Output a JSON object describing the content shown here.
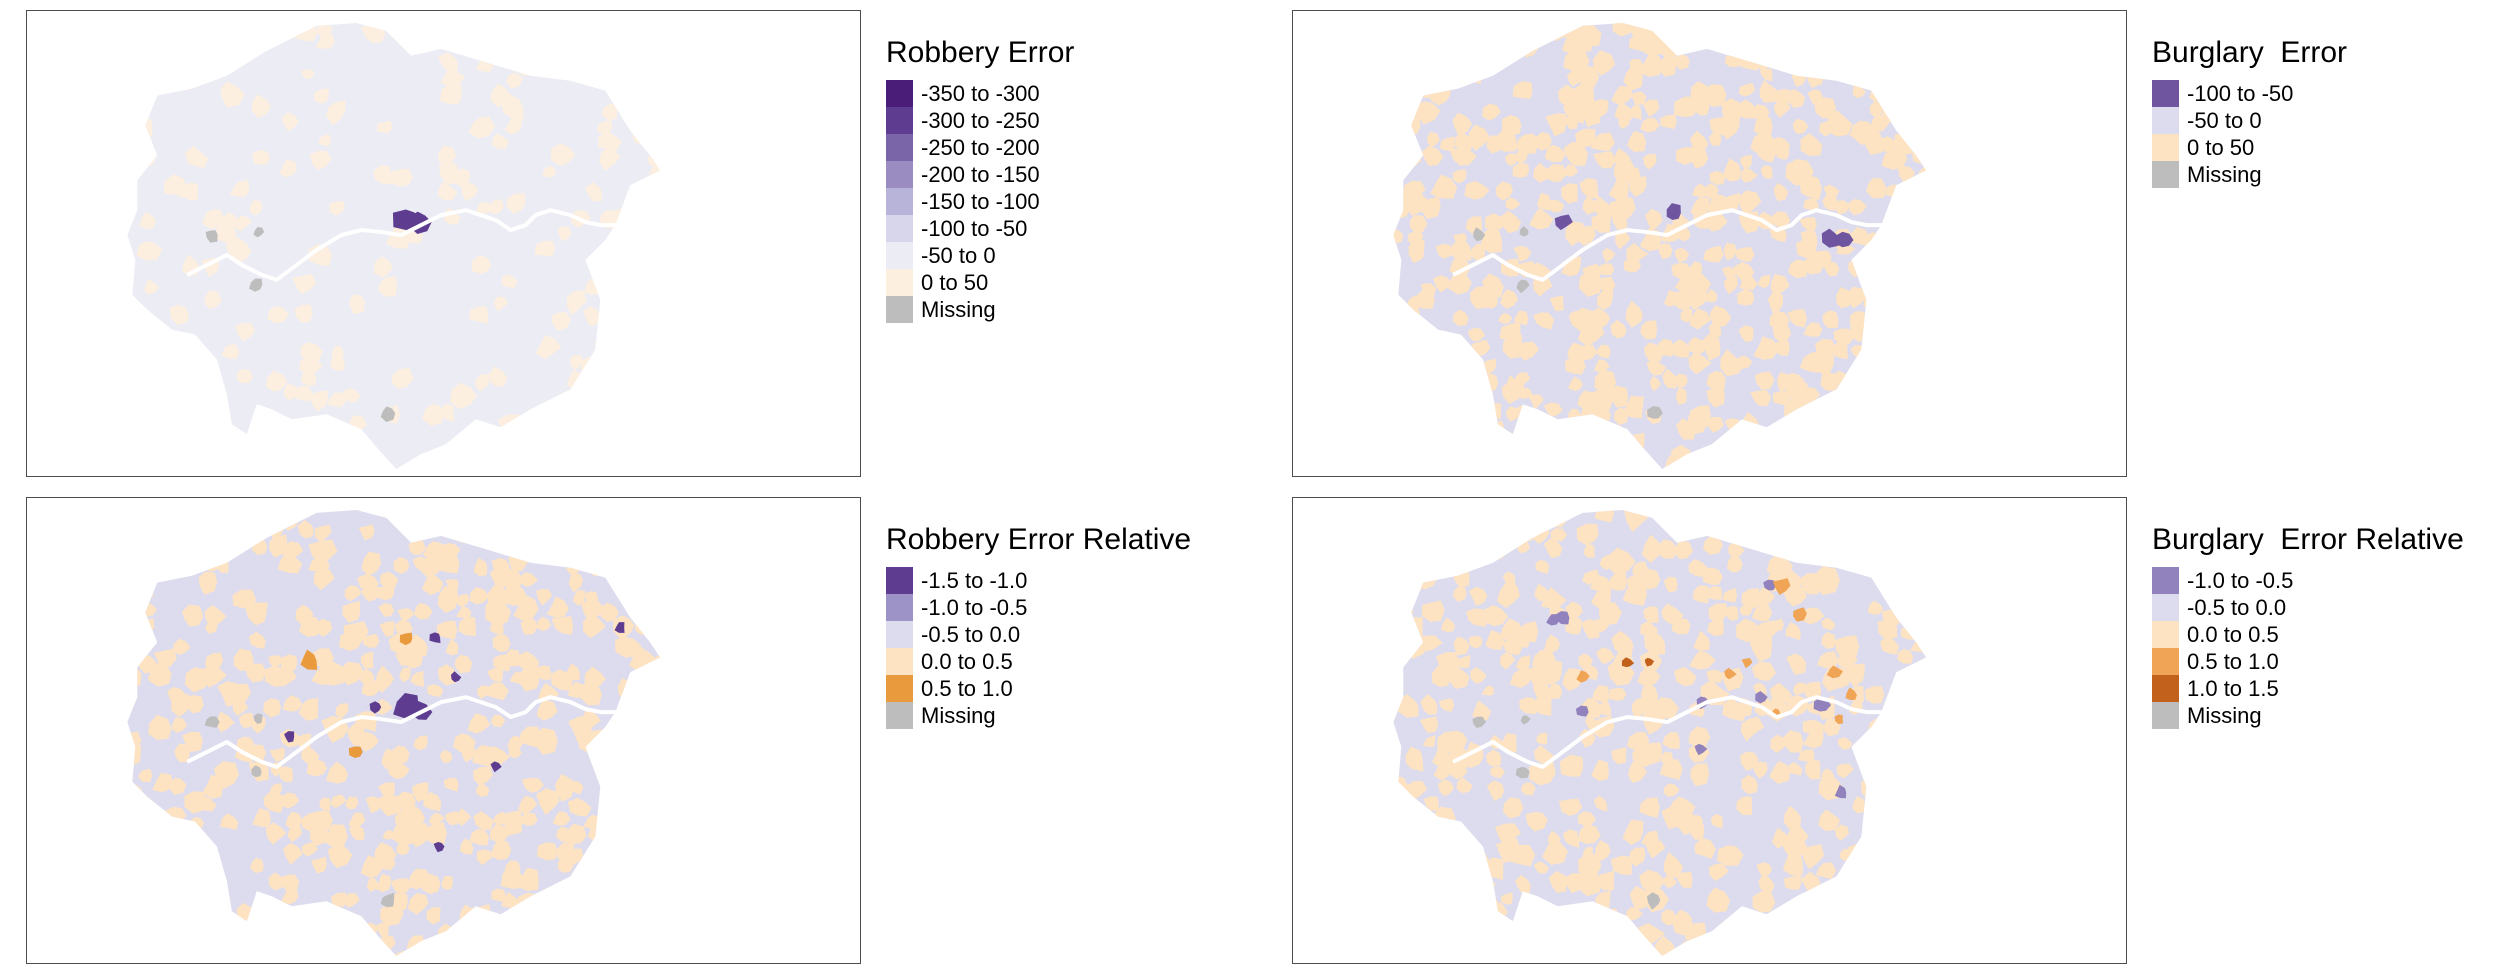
{
  "panels": [
    {
      "title": "Robbery Error",
      "legend": [
        {
          "label": "-350 to -300",
          "color": "#4a1d78"
        },
        {
          "label": "-300 to -250",
          "color": "#5e3d91"
        },
        {
          "label": "-250 to -200",
          "color": "#7a65a8"
        },
        {
          "label": "-200 to -150",
          "color": "#9a8bc1"
        },
        {
          "label": "-150 to -100",
          "color": "#b8b3d8"
        },
        {
          "label": "-100 to -50",
          "color": "#d7d6ea"
        },
        {
          "label": "-50 to 0",
          "color": "#ececf4"
        },
        {
          "label": "0 to 50",
          "color": "#fdefdf"
        },
        {
          "label": "Missing",
          "color": "#bdbdbd"
        }
      ],
      "map_colors": {
        "base": "#ececf4",
        "mosaic": "#fdefdf",
        "dark": "#5e3d91",
        "mid": "#9a8bc1",
        "orange": "#e69138"
      }
    },
    {
      "title": "Burglary  Error",
      "legend": [
        {
          "label": "-100 to -50",
          "color": "#6f55a0"
        },
        {
          "label": "-50 to 0",
          "color": "#dcdcee"
        },
        {
          "label": "0 to 50",
          "color": "#fde3c2"
        },
        {
          "label": "Missing",
          "color": "#bdbdbd"
        }
      ],
      "map_colors": {
        "base": "#dcdcee",
        "mosaic": "#fde3c2",
        "dark": "#6f55a0",
        "mid": "#8f7cbb",
        "orange": "#e69138"
      }
    },
    {
      "title": "Robbery Error Relative",
      "legend": [
        {
          "label": "-1.5 to -1.0",
          "color": "#5e3d91"
        },
        {
          "label": "-1.0 to -0.5",
          "color": "#9e93c6"
        },
        {
          "label": "-0.5 to 0.0",
          "color": "#dcdcee"
        },
        {
          "label": "0.0 to 0.5",
          "color": "#fde3c2"
        },
        {
          "label": "0.5 to 1.0",
          "color": "#e99a3c"
        },
        {
          "label": "Missing",
          "color": "#bdbdbd"
        }
      ],
      "map_colors": {
        "base": "#dcdcee",
        "mosaic": "#fde3c2",
        "dark": "#5e3d91",
        "mid": "#9e93c6",
        "orange": "#e99a3c"
      }
    },
    {
      "title": "Burglary  Error Relative",
      "legend": [
        {
          "label": "-1.0 to -0.5",
          "color": "#9182bd"
        },
        {
          "label": "-0.5 to 0.0",
          "color": "#dcdcee"
        },
        {
          "label": "0.0 to 0.5",
          "color": "#fde3c2"
        },
        {
          "label": "0.5 to 1.0",
          "color": "#f0a455"
        },
        {
          "label": "1.0 to 1.5",
          "color": "#c1611b"
        },
        {
          "label": "Missing",
          "color": "#bdbdbd"
        }
      ],
      "map_colors": {
        "base": "#dcdcee",
        "mosaic": "#fde3c2",
        "dark": "#9182bd",
        "mid": "#9182bd",
        "orange": "#f0a455"
      }
    }
  ],
  "river_color": "#ffffff",
  "missing_color": "#bdbdbd"
}
